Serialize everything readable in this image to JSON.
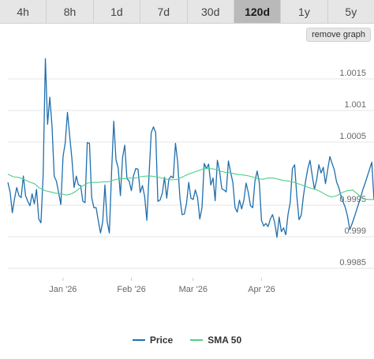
{
  "tabs": [
    {
      "label": "4h",
      "active": false
    },
    {
      "label": "8h",
      "active": false
    },
    {
      "label": "1d",
      "active": false
    },
    {
      "label": "7d",
      "active": false
    },
    {
      "label": "30d",
      "active": false
    },
    {
      "label": "120d",
      "active": true
    },
    {
      "label": "1y",
      "active": false
    },
    {
      "label": "5y",
      "active": false
    }
  ],
  "remove_graph_label": "remove graph",
  "colors": {
    "price": "#1f6fad",
    "sma": "#4fcf86",
    "grid": "#e5e5e5"
  },
  "chart_data": {
    "type": "line",
    "x_start": "2025-12-07",
    "x_tick_labels": [
      {
        "label": "Jan '26",
        "date": "2026-01-01"
      },
      {
        "label": "Feb '26",
        "date": "2026-02-01"
      },
      {
        "label": "Mar '26",
        "date": "2026-03-01"
      },
      {
        "label": "Apr '26",
        "date": "2026-04-01"
      }
    ],
    "y_ticks": [
      0.9985,
      0.999,
      0.9995,
      1.0005,
      1.001,
      1.0015
    ],
    "y_tick_labels": [
      "0.9985",
      "0.999",
      "0.9995",
      "1.0005",
      "1.001",
      "1.0015"
    ],
    "ylim": [
      0.99835,
      1.00195
    ],
    "grid": true,
    "legend_position": "bottom-center",
    "series": [
      {
        "name": "Price",
        "values": [
          0.99986,
          0.99971,
          0.99938,
          0.9996,
          0.99978,
          0.99965,
          0.99962,
          0.99996,
          0.99965,
          0.99956,
          0.99949,
          0.99968,
          0.99952,
          0.99975,
          0.99928,
          0.99922,
          0.99998,
          1.00182,
          1.00078,
          1.00121,
          1.00076,
          0.99996,
          0.99988,
          0.9997,
          0.99951,
          1.00027,
          1.00049,
          1.00097,
          1.0006,
          1.00024,
          0.99978,
          0.99996,
          0.99982,
          0.99981,
          0.99956,
          0.99954,
          1.00049,
          1.00048,
          0.99962,
          0.99946,
          0.99946,
          0.99925,
          0.99906,
          0.99924,
          0.99982,
          0.99924,
          0.99906,
          1.00002,
          1.00083,
          1.00022,
          1.00009,
          0.99965,
          1.00025,
          1.00045,
          0.99992,
          0.99988,
          0.99973,
          0.99997,
          1.00008,
          1.00007,
          0.9997,
          0.99981,
          0.99964,
          0.99926,
          0.99998,
          1.00065,
          1.00074,
          1.00065,
          0.99956,
          0.99958,
          0.99969,
          0.99994,
          0.99961,
          0.99991,
          0.99996,
          0.99993,
          1.00048,
          1.00018,
          0.99962,
          0.99935,
          0.99936,
          0.99953,
          0.99986,
          0.99961,
          0.99959,
          0.99974,
          0.99962,
          0.99928,
          0.99946,
          1.00016,
          1.00008,
          1.00015,
          0.99982,
          0.99993,
          0.99957,
          1.00021,
          1.00004,
          0.99976,
          0.99974,
          0.99971,
          1.0002,
          1.00002,
          0.99986,
          0.99946,
          0.99939,
          0.99958,
          0.99944,
          0.99958,
          0.99985,
          0.9997,
          0.99949,
          0.99946,
          0.99988,
          1.00004,
          0.99985,
          0.99926,
          0.99917,
          0.99921,
          0.99916,
          0.99928,
          0.99935,
          0.99922,
          0.99899,
          0.99931,
          0.99908,
          0.99914,
          0.99903,
          0.99935,
          0.99954,
          1.00008,
          1.00014,
          0.99964,
          0.99927,
          0.99934,
          0.99965,
          0.99988,
          1.00008,
          1.00021,
          0.99997,
          0.99975,
          0.9999,
          1.00014,
          1.00001,
          1.0001,
          0.99984,
          1.00006,
          1.00027,
          1.00016,
          1.00006,
          0.99987,
          0.99978,
          0.99965,
          0.99955,
          0.99946,
          0.99932,
          0.99911,
          0.9992,
          0.9993,
          0.99941,
          0.99952,
          0.99963,
          0.99975,
          0.99985,
          0.99996,
          1.00007,
          1.00018,
          0.99958
        ]
      },
      {
        "name": "SMA 50",
        "values": [
          0.99999,
          0.99995,
          0.99994,
          0.99991,
          0.99987,
          0.99984,
          0.99977,
          0.99973,
          0.99971,
          0.99969,
          0.99968,
          0.99966,
          0.99968,
          0.99973,
          0.9998,
          0.99985,
          0.99986,
          0.99986,
          0.99987,
          0.99987,
          0.9999,
          0.99992,
          0.99992,
          0.99993,
          0.99993,
          0.99995,
          0.99996,
          0.99996,
          0.99995,
          0.99993,
          0.99991,
          0.9999,
          0.99991,
          0.99995,
          0.99999,
          1.00002,
          1.00005,
          1.00008,
          1.00008,
          1.00007,
          1.00004,
          1.00002,
          1.00001,
          0.99999,
          0.99998,
          0.99997,
          0.99995,
          0.99992,
          0.99991,
          0.99993,
          0.99993,
          0.99991,
          0.99989,
          0.99988,
          0.99986,
          0.99983,
          0.9998,
          0.99977,
          0.99975,
          0.99971,
          0.99966,
          0.99963,
          0.99965,
          0.9997,
          0.99973,
          0.99974,
          0.99967,
          0.9996,
          0.99959,
          0.99959
        ]
      }
    ]
  },
  "legend": [
    {
      "label": "Price",
      "color_key": "price"
    },
    {
      "label": "SMA 50",
      "color_key": "sma"
    }
  ]
}
